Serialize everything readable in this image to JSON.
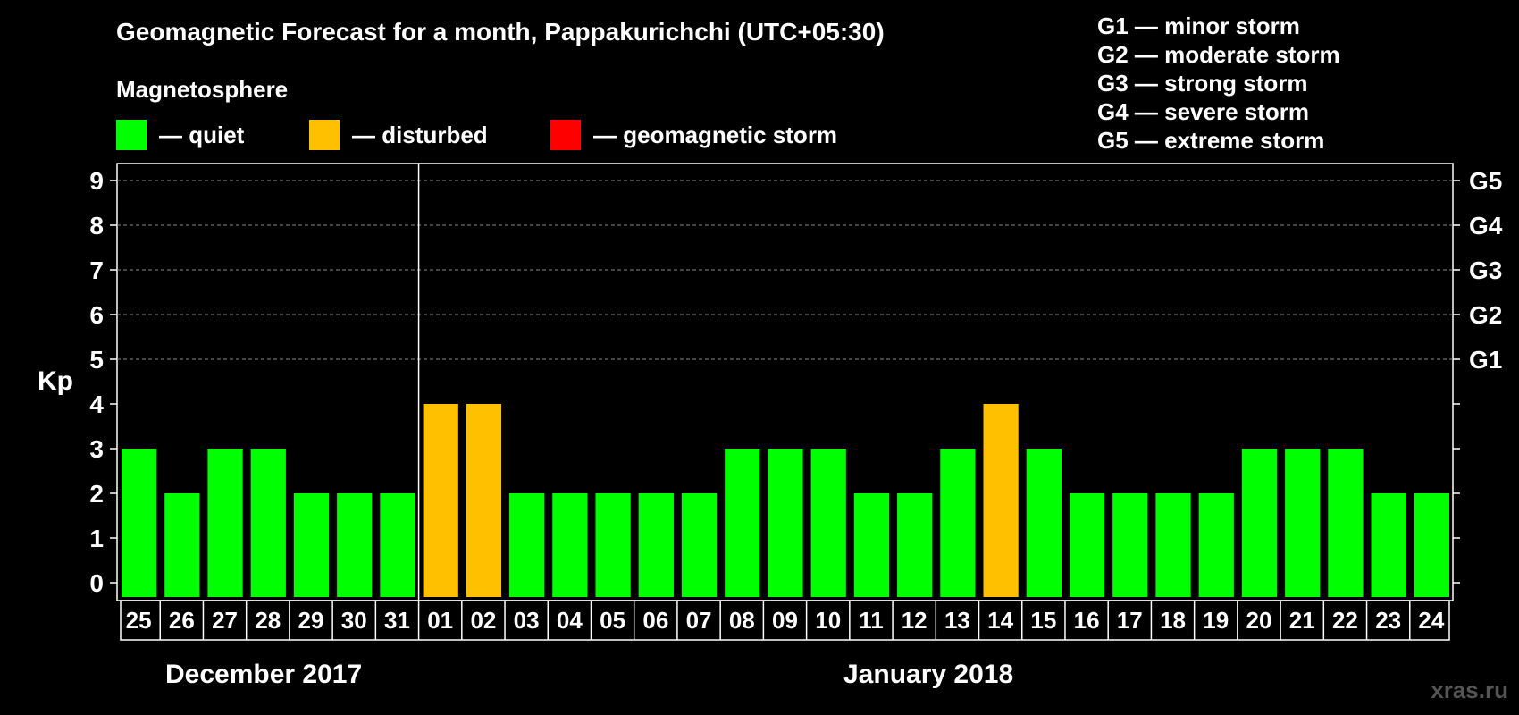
{
  "title": "Geomagnetic Forecast for a month, Pappakurichchi (UTC+05:30)",
  "magnetosphere_title": "Magnetosphere",
  "legend": [
    {
      "label": "— quiet",
      "color": "#00ff00"
    },
    {
      "label": "— disturbed",
      "color": "#ffc000"
    },
    {
      "label": "— geomagnetic storm",
      "color": "#ff0000"
    }
  ],
  "storm_levels": [
    "G1 — minor storm",
    "G2 — moderate storm",
    "G3 — strong storm",
    "G4 — severe storm",
    "G5 — extreme storm"
  ],
  "y_axis_label": "Kp",
  "months": [
    "December 2017",
    "January 2018"
  ],
  "watermark": "xras.ru",
  "chart_data": {
    "type": "bar",
    "title": "Geomagnetic Forecast for a month, Pappakurichchi (UTC+05:30)",
    "ylabel": "Kp",
    "ylim": [
      0,
      9
    ],
    "yticks": [
      0,
      1,
      2,
      3,
      4,
      5,
      6,
      7,
      8,
      9
    ],
    "right_ticks": [
      {
        "kp": 5,
        "label": "G1"
      },
      {
        "kp": 6,
        "label": "G2"
      },
      {
        "kp": 7,
        "label": "G3"
      },
      {
        "kp": 8,
        "label": "G4"
      },
      {
        "kp": 9,
        "label": "G5"
      }
    ],
    "grid": "dashed horizontal at Kp 5-9",
    "month_divider_after": "31",
    "categories": [
      "25",
      "26",
      "27",
      "28",
      "29",
      "30",
      "31",
      "01",
      "02",
      "03",
      "04",
      "05",
      "06",
      "07",
      "08",
      "09",
      "10",
      "11",
      "12",
      "13",
      "14",
      "15",
      "16",
      "17",
      "18",
      "19",
      "20",
      "21",
      "22",
      "23",
      "24"
    ],
    "values": [
      3,
      2,
      3,
      3,
      2,
      2,
      2,
      4,
      4,
      2,
      2,
      2,
      2,
      2,
      3,
      3,
      3,
      2,
      2,
      3,
      4,
      3,
      2,
      2,
      2,
      2,
      3,
      3,
      3,
      2,
      2
    ],
    "status": [
      "quiet",
      "quiet",
      "quiet",
      "quiet",
      "quiet",
      "quiet",
      "quiet",
      "disturbed",
      "disturbed",
      "quiet",
      "quiet",
      "quiet",
      "quiet",
      "quiet",
      "quiet",
      "quiet",
      "quiet",
      "quiet",
      "quiet",
      "quiet",
      "disturbed",
      "quiet",
      "quiet",
      "quiet",
      "quiet",
      "quiet",
      "quiet",
      "quiet",
      "quiet",
      "quiet",
      "quiet"
    ],
    "status_colors": {
      "quiet": "#00ff00",
      "disturbed": "#ffc000",
      "storm": "#ff0000"
    }
  }
}
